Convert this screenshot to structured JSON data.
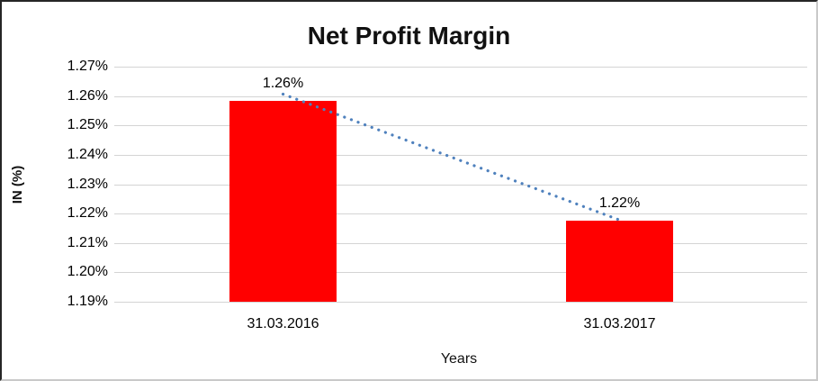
{
  "chart_data": {
    "type": "bar",
    "title": "Net Profit Margin",
    "xlabel": "Years",
    "ylabel": "IN (%)",
    "categories": [
      "31.03.2016",
      "31.03.2017"
    ],
    "series": [
      {
        "name": "Net Profit Margin",
        "values": [
          1.2585,
          1.2175
        ],
        "data_labels": [
          "1.26%",
          "1.22%"
        ]
      }
    ],
    "ylim": [
      1.19,
      1.27
    ],
    "ytick_values": [
      1.19,
      1.2,
      1.21,
      1.22,
      1.23,
      1.24,
      1.25,
      1.26,
      1.27
    ],
    "ytick_labels": [
      "1.19%",
      "1.20%",
      "1.21%",
      "1.22%",
      "1.23%",
      "1.24%",
      "1.25%",
      "1.26%",
      "1.27%"
    ],
    "grid": true,
    "legend_position": "none",
    "bar_color": "#FF0000",
    "trendline": {
      "style": "dotted",
      "color": "#4F81BD"
    }
  }
}
